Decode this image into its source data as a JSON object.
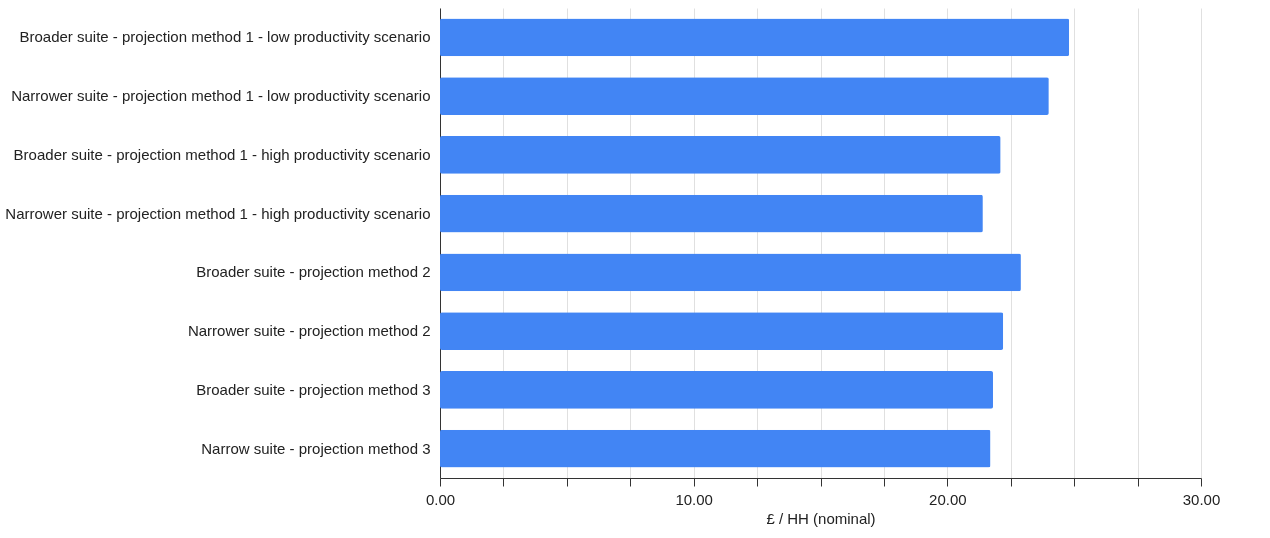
{
  "chart_data": {
    "type": "bar",
    "orientation": "horizontal",
    "xlabel": "£ / HH (nominal)",
    "categories": [
      "Broader suite - projection method 1 - low productivity scenario",
      "Narrower suite - projection method 1 - low productivity scenario",
      "Broader suite - projection method 1 - high productivity scenario",
      "Narrower suite - projection method 1 - high productivity scenario",
      "Broader suite - projection method 2",
      "Narrower suite - projection method 2",
      "Broader suite - projection method 3",
      "Narrow suite - projection method 3"
    ],
    "values": [
      24.8,
      24.0,
      22.1,
      21.4,
      22.9,
      22.2,
      21.8,
      21.7
    ],
    "color": "#4285f4",
    "xlim": [
      0,
      30
    ],
    "xticks": [
      {
        "value": 0,
        "label": "0.00"
      },
      {
        "value": 2.5,
        "label": null
      },
      {
        "value": 5,
        "label": null
      },
      {
        "value": 7.5,
        "label": null
      },
      {
        "value": 10,
        "label": "10.00"
      },
      {
        "value": 12.5,
        "label": null
      },
      {
        "value": 15,
        "label": null
      },
      {
        "value": 17.5,
        "label": null
      },
      {
        "value": 20,
        "label": "20.00"
      },
      {
        "value": 22.5,
        "label": null
      },
      {
        "value": 25,
        "label": null
      },
      {
        "value": 27.5,
        "label": null
      },
      {
        "value": 30,
        "label": "30.00"
      }
    ],
    "grid": "x"
  }
}
